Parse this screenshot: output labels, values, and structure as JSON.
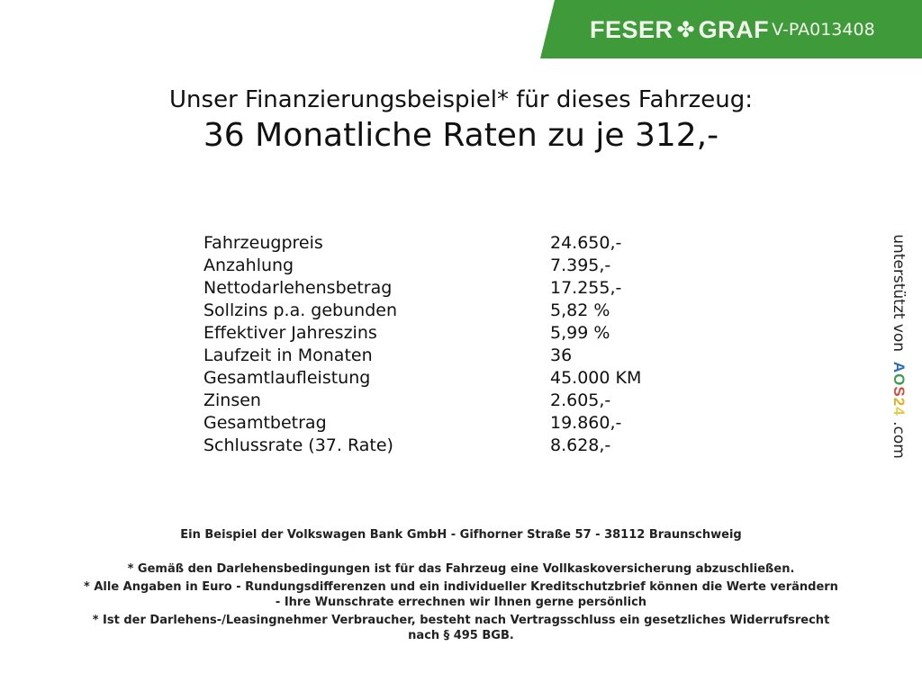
{
  "header": {
    "brand_left": "FESER",
    "brand_icon": "clover-icon",
    "brand_right": "GRAF",
    "reference": "V-PA013408",
    "banner_color": "#3f9b3a"
  },
  "title": {
    "line1": "Unser Finanzierungsbeispiel* für dieses Fahrzeug:",
    "line2": "36 Monatliche Raten zu je 312,-"
  },
  "rows": [
    {
      "label": "Fahrzeugpreis",
      "value": "24.650,-"
    },
    {
      "label": "Anzahlung",
      "value": "7.395,-"
    },
    {
      "label": "Nettodarlehensbetrag",
      "value": "17.255,-"
    },
    {
      "label": "Sollzins p.a. gebunden",
      "value": "5,82 %"
    },
    {
      "label": "Effektiver Jahreszins",
      "value": "5,99 %"
    },
    {
      "label": "Laufzeit in Monaten",
      "value": "36"
    },
    {
      "label": "Gesamtlaufleistung",
      "value": "45.000 KM"
    },
    {
      "label": "Zinsen",
      "value": "2.605,-"
    },
    {
      "label": "Gesamtbetrag",
      "value": "19.860,-"
    },
    {
      "label": "Schlussrate (37. Rate)",
      "value": "8.628,-"
    }
  ],
  "side": {
    "prefix": "unterstützt von",
    "logo": [
      "A",
      "O",
      "S",
      "2",
      "4"
    ],
    "suffix": ".com"
  },
  "footer": {
    "bank": "Ein Beispiel der Volkswagen Bank GmbH - Gifhorner Straße 57 - 38112 Braunschweig",
    "note1": "* Gemäß den Darlehensbedingungen ist für das Fahrzeug eine Vollkaskoversicherung abzuschließen.",
    "note2a": "* Alle Angaben in Euro - Rundungsdifferenzen und ein individueller Kreditschutzbrief können die Werte verändern",
    "note2b": "- Ihre Wunschrate errechnen wir Ihnen gerne persönlich",
    "note3a": "* Ist der Darlehens-/Leasingnehmer Verbraucher, besteht nach Vertragsschluss ein gesetzliches Widerrufsrecht",
    "note3b": "nach § 495 BGB."
  }
}
